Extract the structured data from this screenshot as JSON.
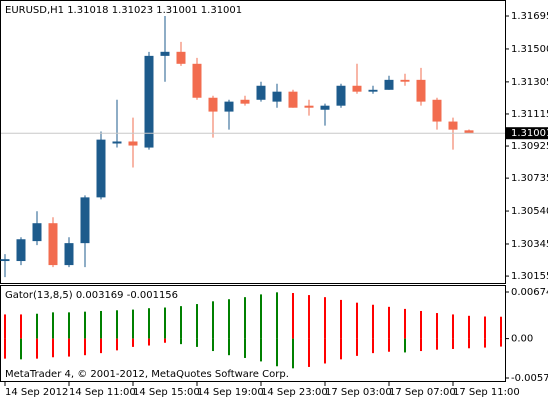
{
  "chart_data": [
    {
      "type": "candlestick",
      "title": "EURUSD,H1  1.31018 1.31023 1.31001 1.31001",
      "categories": [
        "14 Sep 2012",
        null,
        null,
        null,
        "14 Sep 11:00",
        null,
        null,
        null,
        "14 Sep 15:00",
        null,
        null,
        null,
        "14 Sep 19:00",
        null,
        null,
        null,
        "14 Sep 23:00",
        null,
        null,
        null,
        "17 Sep 03:00",
        null,
        null,
        null,
        "17 Sep 07:00",
        null,
        null,
        null,
        "17 Sep 11:00",
        null
      ],
      "open": [
        1.30244,
        1.30244,
        1.30362,
        1.30468,
        1.3022,
        1.3035,
        1.30621,
        1.3094,
        1.30952,
        1.30916,
        1.31459,
        1.31483,
        1.31412,
        1.31211,
        1.31129,
        1.31199,
        1.31199,
        1.31188,
        1.31247,
        1.31164,
        1.3114,
        1.31164,
        1.31282,
        1.31247,
        1.31258,
        1.31317,
        1.31317,
        1.31199,
        1.3107,
        1.31018
      ],
      "high": [
        1.30285,
        1.30385,
        1.30539,
        1.30503,
        1.30385,
        1.30633,
        1.31011,
        1.31199,
        1.31093,
        1.31483,
        1.31695,
        1.31542,
        1.31447,
        1.31223,
        1.31199,
        1.31223,
        1.31306,
        1.31294,
        1.31258,
        1.31199,
        1.31176,
        1.31294,
        1.31412,
        1.31282,
        1.31341,
        1.31353,
        1.31388,
        1.31211,
        1.31093,
        1.31023
      ],
      "low": [
        1.30149,
        1.3022,
        1.30338,
        1.30208,
        1.30208,
        1.30208,
        1.30609,
        1.30916,
        1.30798,
        1.30904,
        1.31306,
        1.314,
        1.31199,
        1.30975,
        1.31022,
        1.31164,
        1.31188,
        1.31152,
        1.31152,
        1.31105,
        1.31046,
        1.31152,
        1.31235,
        1.31235,
        1.31258,
        1.31282,
        1.31164,
        1.31022,
        1.30904,
        1.31001
      ],
      "close": [
        1.30255,
        1.30373,
        1.30468,
        1.3022,
        1.3035,
        1.30621,
        1.30963,
        1.30952,
        1.30928,
        1.31459,
        1.31483,
        1.31412,
        1.31211,
        1.31129,
        1.31188,
        1.31176,
        1.31282,
        1.31247,
        1.31152,
        1.31152,
        1.31164,
        1.31282,
        1.31247,
        1.31258,
        1.31317,
        1.31306,
        1.31188,
        1.3107,
        1.31022,
        1.31001
      ],
      "up_color": "#1d5b8c",
      "down_color": "#f26c4f",
      "last_price": 1.31001,
      "ylim": [
        1.30108,
        1.31778
      ],
      "yticks": [
        1.31695,
        {
          "value": 1.315,
          "label": "1.31500"
        },
        1.31305,
        1.31115,
        1.30925,
        1.30735,
        {
          "value": 1.3054,
          "label": "1.30540"
        },
        1.30345,
        1.30155
      ]
    },
    {
      "type": "gator",
      "title": "Gator(13,8,5) 0.003169 -0.001156",
      "annotation": "MetaTrader 4, © 2001-2012, MetaQuotes Software Corp.",
      "categories": [
        null,
        null,
        null,
        null,
        null,
        null,
        null,
        null,
        null,
        null,
        null,
        null,
        null,
        null,
        null,
        null,
        null,
        null,
        null,
        null,
        null,
        null,
        null,
        null,
        null,
        null,
        null,
        null,
        null,
        null,
        null,
        null
      ],
      "upper": {
        "values": [
          0.0035,
          0.0035,
          0.0036,
          0.0038,
          0.0038,
          0.0039,
          0.004,
          0.0041,
          0.0042,
          0.0044,
          0.0045,
          0.0047,
          0.005,
          0.0054,
          0.0057,
          0.006,
          0.0064,
          0.0067,
          0.0066,
          0.0063,
          0.006,
          0.0056,
          0.0052,
          0.0049,
          0.0046,
          0.0043,
          0.004,
          0.0037,
          0.0035,
          0.0033,
          0.0032,
          0.003169
        ],
        "colors": [
          "#ff0000",
          "#ff0000",
          "#008000",
          "#008000",
          "#008000",
          "#008000",
          "#008000",
          "#008000",
          "#008000",
          "#008000",
          "#008000",
          "#008000",
          "#008000",
          "#008000",
          "#008000",
          "#008000",
          "#008000",
          "#008000",
          "#ff0000",
          "#ff0000",
          "#ff0000",
          "#ff0000",
          "#ff0000",
          "#ff0000",
          "#ff0000",
          "#ff0000",
          "#ff0000",
          "#ff0000",
          "#ff0000",
          "#ff0000",
          "#ff0000",
          "#ff0000"
        ]
      },
      "lower": {
        "values": [
          -0.0029,
          -0.003,
          -0.0029,
          -0.0027,
          -0.0026,
          -0.0024,
          -0.0021,
          -0.0017,
          -0.0012,
          -0.001,
          -0.0006,
          -0.0008,
          -0.0012,
          -0.0018,
          -0.0024,
          -0.0028,
          -0.0033,
          -0.004,
          -0.0043,
          -0.0041,
          -0.0036,
          -0.003,
          -0.0025,
          -0.0021,
          -0.0019,
          -0.002,
          -0.0018,
          -0.0016,
          -0.0015,
          -0.0014,
          -0.0013,
          -0.001156
        ],
        "colors": [
          "#ff0000",
          "#008000",
          "#ff0000",
          "#ff0000",
          "#ff0000",
          "#ff0000",
          "#ff0000",
          "#ff0000",
          "#ff0000",
          "#ff0000",
          "#ff0000",
          "#008000",
          "#008000",
          "#008000",
          "#008000",
          "#008000",
          "#008000",
          "#008000",
          "#008000",
          "#ff0000",
          "#ff0000",
          "#ff0000",
          "#ff0000",
          "#ff0000",
          "#ff0000",
          "#008000",
          "#ff0000",
          "#ff0000",
          "#ff0000",
          "#ff0000",
          "#ff0000",
          "#ff0000"
        ]
      },
      "ylim": [
        -0.00628,
        0.00747
      ],
      "yticks": [
        0.006746,
        {
          "value": 0,
          "label": "0.00"
        },
        {
          "value": -0.0057,
          "label": "-0.00570"
        }
      ]
    }
  ]
}
